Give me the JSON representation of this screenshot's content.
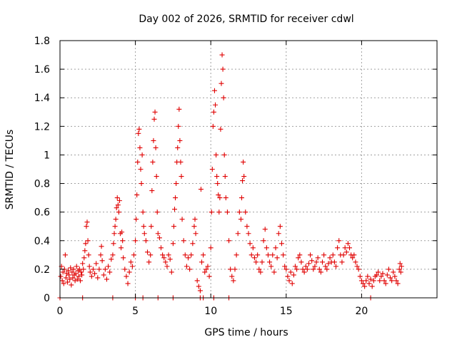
{
  "chart_data": {
    "type": "scatter",
    "title": "Day 002 of 2026, SRMTID for receiver cdwl",
    "xlabel": "GPS time / hours",
    "ylabel": "SRMTID / TECUs",
    "xlim": [
      0,
      25
    ],
    "ylim": [
      0,
      1.8
    ],
    "xticks": [
      0,
      5,
      10,
      15,
      20
    ],
    "yticks": [
      0,
      0.2,
      0.4,
      0.6,
      0.8,
      1,
      1.2,
      1.4,
      1.6,
      1.8
    ],
    "ytick_labels": [
      "0",
      "0.2",
      "0.4",
      "0.6",
      "0.8",
      "1",
      "1.2",
      "1.4",
      "1.6",
      "1.8"
    ],
    "grid": true,
    "marker": "+",
    "marker_color": "#e00000",
    "series": [
      {
        "name": "SRMTID",
        "points": [
          [
            0.05,
            0.15
          ],
          [
            0.1,
            0.22
          ],
          [
            0.15,
            0.12
          ],
          [
            0.2,
            0.18
          ],
          [
            0.25,
            0.1
          ],
          [
            0.3,
            0.2
          ],
          [
            0.35,
            0.3
          ],
          [
            0.4,
            0.14
          ],
          [
            0.45,
            0.17
          ],
          [
            0.5,
            0.11
          ],
          [
            0.55,
            0.19
          ],
          [
            0.6,
            0.16
          ],
          [
            0.65,
            0.13
          ],
          [
            0.7,
            0.21
          ],
          [
            0.75,
            0.09
          ],
          [
            0.8,
            0.18
          ],
          [
            0.85,
            0.14
          ],
          [
            0.9,
            0.2
          ],
          [
            0.95,
            0.16
          ],
          [
            1.0,
            0.12
          ],
          [
            1.05,
            0.17
          ],
          [
            1.1,
            0.22
          ],
          [
            1.15,
            0.13
          ],
          [
            1.2,
            0.19
          ],
          [
            1.25,
            0.15
          ],
          [
            1.3,
            0.2
          ],
          [
            1.35,
            0.12
          ],
          [
            1.4,
            0.18
          ],
          [
            1.45,
            0.16
          ],
          [
            1.5,
            0.24
          ],
          [
            1.55,
            0.2
          ],
          [
            1.6,
            0.28
          ],
          [
            1.65,
            0.33
          ],
          [
            1.7,
            0.38
          ],
          [
            1.75,
            0.5
          ],
          [
            1.8,
            0.53
          ],
          [
            1.85,
            0.4
          ],
          [
            1.9,
            0.3
          ],
          [
            1.95,
            0.22
          ],
          [
            2.0,
            0.18
          ],
          [
            2.1,
            0.15
          ],
          [
            2.2,
            0.2
          ],
          [
            2.3,
            0.17
          ],
          [
            2.4,
            0.24
          ],
          [
            2.5,
            0.14
          ],
          [
            2.6,
            0.2
          ],
          [
            2.7,
            0.3
          ],
          [
            2.75,
            0.36
          ],
          [
            2.8,
            0.26
          ],
          [
            2.9,
            0.16
          ],
          [
            3.0,
            0.2
          ],
          [
            3.1,
            0.13
          ],
          [
            3.2,
            0.22
          ],
          [
            3.3,
            0.18
          ],
          [
            3.4,
            0.27
          ],
          [
            3.5,
            0.3
          ],
          [
            3.55,
            0.38
          ],
          [
            3.6,
            0.45
          ],
          [
            3.65,
            0.5
          ],
          [
            3.7,
            0.55
          ],
          [
            3.75,
            0.63
          ],
          [
            3.8,
            0.7
          ],
          [
            3.85,
            0.65
          ],
          [
            3.9,
            0.6
          ],
          [
            3.95,
            0.68
          ],
          [
            4.0,
            0.45
          ],
          [
            4.05,
            0.35
          ],
          [
            4.1,
            0.46
          ],
          [
            4.15,
            0.4
          ],
          [
            4.2,
            0.28
          ],
          [
            4.3,
            0.2
          ],
          [
            4.4,
            0.15
          ],
          [
            4.5,
            0.1
          ],
          [
            4.6,
            0.18
          ],
          [
            4.7,
            0.25
          ],
          [
            4.8,
            0.22
          ],
          [
            4.9,
            0.3
          ],
          [
            5.0,
            0.4
          ],
          [
            5.05,
            0.55
          ],
          [
            5.1,
            0.72
          ],
          [
            5.15,
            0.95
          ],
          [
            5.2,
            1.15
          ],
          [
            5.25,
            1.18
          ],
          [
            5.3,
            1.05
          ],
          [
            5.35,
            0.9
          ],
          [
            5.4,
            0.8
          ],
          [
            5.45,
            1.0
          ],
          [
            5.5,
            0.6
          ],
          [
            5.55,
            0.5
          ],
          [
            5.6,
            0.45
          ],
          [
            5.7,
            0.4
          ],
          [
            5.8,
            0.32
          ],
          [
            5.9,
            0.25
          ],
          [
            6.0,
            0.3
          ],
          [
            6.05,
            0.5
          ],
          [
            6.1,
            0.75
          ],
          [
            6.15,
            0.95
          ],
          [
            6.2,
            1.1
          ],
          [
            6.25,
            1.25
          ],
          [
            6.3,
            1.3
          ],
          [
            6.35,
            1.05
          ],
          [
            6.4,
            0.85
          ],
          [
            6.45,
            0.6
          ],
          [
            6.5,
            0.45
          ],
          [
            6.6,
            0.42
          ],
          [
            6.7,
            0.35
          ],
          [
            6.8,
            0.3
          ],
          [
            6.9,
            0.28
          ],
          [
            7.0,
            0.25
          ],
          [
            7.1,
            0.22
          ],
          [
            7.2,
            0.3
          ],
          [
            7.3,
            0.27
          ],
          [
            7.4,
            0.18
          ],
          [
            7.5,
            0.38
          ],
          [
            7.55,
            0.5
          ],
          [
            7.6,
            0.62
          ],
          [
            7.65,
            0.7
          ],
          [
            7.7,
            0.8
          ],
          [
            7.75,
            0.95
          ],
          [
            7.8,
            1.05
          ],
          [
            7.85,
            1.2
          ],
          [
            7.9,
            1.32
          ],
          [
            7.95,
            1.1
          ],
          [
            8.0,
            0.95
          ],
          [
            8.05,
            0.85
          ],
          [
            8.1,
            0.55
          ],
          [
            8.2,
            0.4
          ],
          [
            8.3,
            0.3
          ],
          [
            8.4,
            0.22
          ],
          [
            8.5,
            0.28
          ],
          [
            8.6,
            0.2
          ],
          [
            8.7,
            0.3
          ],
          [
            8.8,
            0.38
          ],
          [
            8.9,
            0.5
          ],
          [
            8.95,
            0.55
          ],
          [
            9.0,
            0.45
          ],
          [
            9.1,
            0.12
          ],
          [
            9.2,
            0.08
          ],
          [
            9.3,
            0.05
          ],
          [
            9.35,
            0.76
          ],
          [
            9.4,
            0.25
          ],
          [
            9.5,
            0.3
          ],
          [
            9.6,
            0.18
          ],
          [
            9.7,
            0.2
          ],
          [
            9.8,
            0.22
          ],
          [
            9.9,
            0.15
          ],
          [
            10.0,
            0.35
          ],
          [
            10.05,
            0.6
          ],
          [
            10.1,
            0.9
          ],
          [
            10.15,
            1.2
          ],
          [
            10.2,
            1.3
          ],
          [
            10.25,
            1.45
          ],
          [
            10.3,
            1.35
          ],
          [
            10.35,
            1.0
          ],
          [
            10.4,
            0.85
          ],
          [
            10.45,
            0.8
          ],
          [
            10.5,
            0.72
          ],
          [
            10.55,
            0.6
          ],
          [
            10.6,
            0.7
          ],
          [
            10.65,
            1.18
          ],
          [
            10.7,
            1.5
          ],
          [
            10.75,
            1.7
          ],
          [
            10.8,
            1.6
          ],
          [
            10.85,
            1.4
          ],
          [
            10.9,
            1.0
          ],
          [
            10.95,
            0.85
          ],
          [
            11.0,
            0.7
          ],
          [
            11.1,
            0.6
          ],
          [
            11.2,
            0.4
          ],
          [
            11.3,
            0.2
          ],
          [
            11.4,
            0.15
          ],
          [
            11.5,
            0.12
          ],
          [
            11.6,
            0.2
          ],
          [
            11.7,
            0.3
          ],
          [
            11.8,
            0.45
          ],
          [
            11.9,
            0.6
          ],
          [
            12.0,
            0.55
          ],
          [
            12.05,
            0.7
          ],
          [
            12.1,
            0.82
          ],
          [
            12.15,
            0.95
          ],
          [
            12.2,
            0.85
          ],
          [
            12.3,
            0.6
          ],
          [
            12.4,
            0.5
          ],
          [
            12.5,
            0.45
          ],
          [
            12.6,
            0.38
          ],
          [
            12.7,
            0.3
          ],
          [
            12.8,
            0.35
          ],
          [
            12.9,
            0.28
          ],
          [
            13.0,
            0.25
          ],
          [
            13.1,
            0.3
          ],
          [
            13.2,
            0.2
          ],
          [
            13.3,
            0.18
          ],
          [
            13.4,
            0.25
          ],
          [
            13.5,
            0.4
          ],
          [
            13.6,
            0.48
          ],
          [
            13.7,
            0.35
          ],
          [
            13.8,
            0.3
          ],
          [
            13.9,
            0.25
          ],
          [
            14.0,
            0.22
          ],
          [
            14.1,
            0.3
          ],
          [
            14.2,
            0.18
          ],
          [
            14.3,
            0.35
          ],
          [
            14.4,
            0.28
          ],
          [
            14.5,
            0.45
          ],
          [
            14.6,
            0.5
          ],
          [
            14.7,
            0.38
          ],
          [
            14.8,
            0.3
          ],
          [
            14.9,
            0.22
          ],
          [
            15.0,
            0.2
          ],
          [
            15.1,
            0.15
          ],
          [
            15.2,
            0.12
          ],
          [
            15.3,
            0.18
          ],
          [
            15.4,
            0.1
          ],
          [
            15.5,
            0.16
          ],
          [
            15.6,
            0.22
          ],
          [
            15.7,
            0.2
          ],
          [
            15.8,
            0.28
          ],
          [
            15.9,
            0.3
          ],
          [
            16.0,
            0.25
          ],
          [
            16.1,
            0.2
          ],
          [
            16.2,
            0.18
          ],
          [
            16.3,
            0.22
          ],
          [
            16.4,
            0.2
          ],
          [
            16.5,
            0.24
          ],
          [
            16.6,
            0.3
          ],
          [
            16.7,
            0.26
          ],
          [
            16.8,
            0.2
          ],
          [
            16.9,
            0.22
          ],
          [
            17.0,
            0.25
          ],
          [
            17.1,
            0.28
          ],
          [
            17.2,
            0.2
          ],
          [
            17.3,
            0.18
          ],
          [
            17.4,
            0.25
          ],
          [
            17.5,
            0.3
          ],
          [
            17.6,
            0.22
          ],
          [
            17.7,
            0.2
          ],
          [
            17.8,
            0.24
          ],
          [
            17.9,
            0.28
          ],
          [
            18.0,
            0.25
          ],
          [
            18.1,
            0.3
          ],
          [
            18.2,
            0.25
          ],
          [
            18.3,
            0.22
          ],
          [
            18.4,
            0.35
          ],
          [
            18.5,
            0.4
          ],
          [
            18.6,
            0.3
          ],
          [
            18.7,
            0.25
          ],
          [
            18.8,
            0.3
          ],
          [
            18.9,
            0.35
          ],
          [
            19.0,
            0.32
          ],
          [
            19.1,
            0.38
          ],
          [
            19.2,
            0.35
          ],
          [
            19.3,
            0.3
          ],
          [
            19.4,
            0.28
          ],
          [
            19.5,
            0.3
          ],
          [
            19.6,
            0.25
          ],
          [
            19.7,
            0.22
          ],
          [
            19.8,
            0.2
          ],
          [
            19.9,
            0.15
          ],
          [
            20.0,
            0.12
          ],
          [
            20.1,
            0.1
          ],
          [
            20.2,
            0.08
          ],
          [
            20.3,
            0.12
          ],
          [
            20.4,
            0.15
          ],
          [
            20.5,
            0.1
          ],
          [
            20.6,
            0.13
          ],
          [
            20.7,
            0.08
          ],
          [
            20.8,
            0.12
          ],
          [
            20.9,
            0.15
          ],
          [
            21.0,
            0.16
          ],
          [
            21.1,
            0.18
          ],
          [
            21.2,
            0.12
          ],
          [
            21.3,
            0.15
          ],
          [
            21.4,
            0.17
          ],
          [
            21.5,
            0.12
          ],
          [
            21.6,
            0.1
          ],
          [
            21.7,
            0.16
          ],
          [
            21.8,
            0.2
          ],
          [
            21.9,
            0.14
          ],
          [
            22.0,
            0.12
          ],
          [
            22.1,
            0.18
          ],
          [
            22.2,
            0.15
          ],
          [
            22.3,
            0.12
          ],
          [
            22.4,
            0.1
          ],
          [
            22.5,
            0.2
          ],
          [
            22.55,
            0.24
          ],
          [
            22.6,
            0.18
          ],
          [
            22.65,
            0.22
          ],
          [
            0.0,
            0.0
          ],
          [
            1.5,
            0.0
          ],
          [
            3.5,
            0.0
          ],
          [
            5.0,
            0.0
          ],
          [
            5.5,
            0.0
          ],
          [
            6.5,
            0.0
          ],
          [
            7.5,
            0.0
          ],
          [
            9.3,
            0.0
          ],
          [
            9.5,
            0.0
          ],
          [
            10.2,
            0.0
          ],
          [
            11.2,
            0.0
          ],
          [
            20.6,
            0.0
          ]
        ]
      }
    ]
  }
}
